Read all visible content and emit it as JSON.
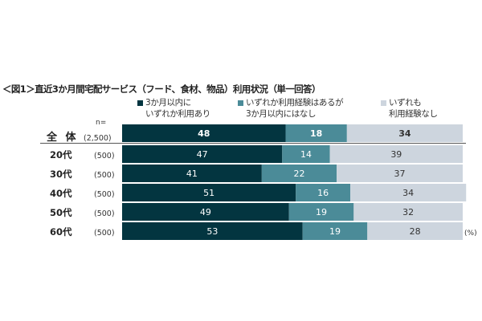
{
  "chart_data": {
    "type": "bar",
    "orientation": "horizontal",
    "stacked": true,
    "title": "＜図1＞直近3か月間宅配サービス（フード、食材、物品）利用状況（単一回答）",
    "categories": [
      "全 体",
      "20代",
      "30代",
      "40代",
      "50代",
      "60代"
    ],
    "n_header": "n=",
    "n_values": [
      "(2,500)",
      "(500)",
      "(500)",
      "(500)",
      "(500)",
      "(500)"
    ],
    "unit": "(%)",
    "xlim": [
      0,
      100
    ],
    "legend_placement": "top",
    "series": [
      {
        "name": "3か月以内に\nいずれか利用あり",
        "color": "#033540",
        "label_color": "#ffffff",
        "values": [
          48,
          47,
          41,
          51,
          49,
          53
        ]
      },
      {
        "name": "いずれか利用経験はあるが\n3か月以内にはなし",
        "color": "#4b8b98",
        "label_color": "#ffffff",
        "values": [
          18,
          14,
          22,
          16,
          19,
          19
        ]
      },
      {
        "name": "いずれも\n利用経験なし",
        "color": "#cdd5de",
        "label_color": "#333333",
        "values": [
          34,
          39,
          37,
          34,
          32,
          28
        ]
      }
    ]
  }
}
